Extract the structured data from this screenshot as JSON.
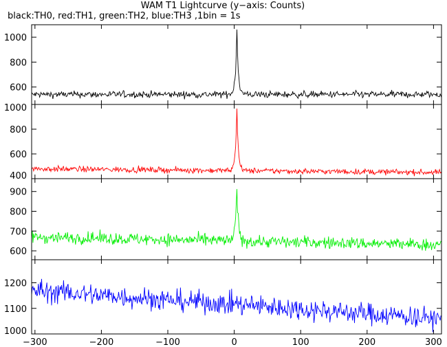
{
  "chart_data": {
    "type": "line",
    "title": "WAM T1 Lightcurve (y−axis: Counts)",
    "subtitle": "black:TH0, red:TH1, green:TH2, blue:TH3 ,1bin = 1s",
    "xlim": [
      -305,
      312
    ],
    "x_ticks": [
      -300,
      -200,
      -100,
      0,
      100,
      200,
      300
    ],
    "bin_seconds": 1,
    "peak_time": 4,
    "panels": [
      {
        "series_name": "TH0",
        "color": "#000000",
        "ylim": [
          460,
          1100
        ],
        "y_ticks": [
          600,
          800,
          1000
        ],
        "baseline": 540,
        "noise": 35,
        "trend": 0,
        "peak": 1100,
        "grid": false
      },
      {
        "series_name": "TH1",
        "color": "#ff0000",
        "ylim": [
          400,
          1000
        ],
        "y_ticks": [
          400,
          600,
          800,
          1000
        ],
        "baseline": 480,
        "noise": 30,
        "trend": -30,
        "peak": 1000,
        "grid": false
      },
      {
        "series_name": "TH2",
        "color": "#00ee00",
        "ylim": [
          555,
          965
        ],
        "y_ticks": [
          600,
          700,
          800,
          900
        ],
        "baseline": 670,
        "noise": 40,
        "trend": -40,
        "peak": 960,
        "grid": false
      },
      {
        "series_name": "TH3",
        "color": "#0000ff",
        "ylim": [
          1000,
          1290
        ],
        "y_ticks": [
          1000,
          1100,
          1200
        ],
        "baseline": 1170,
        "noise": 55,
        "trend": -110,
        "peak": 1180,
        "grid": false
      }
    ]
  }
}
